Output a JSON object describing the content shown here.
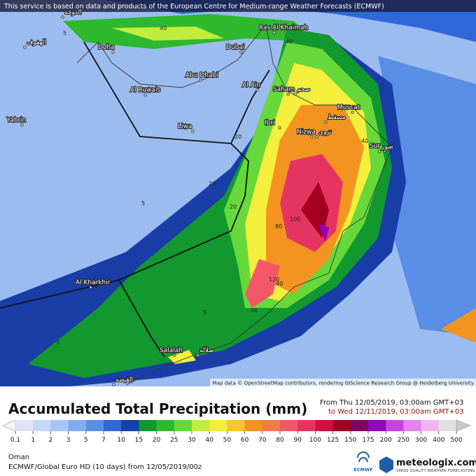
{
  "notice": "This service is based on data and products of the European Centre for Medium-range Weather Forecasts (ECMWF)",
  "map": {
    "places": [
      "Ras Al Khaimah",
      "Doha",
      "Dubai",
      "Abu Dhabi",
      "Al Ruwais",
      "Al Ain",
      "Saham",
      "Muscat",
      "Ibri",
      "Nizwa",
      "Sur",
      "Liwa",
      "Yabrin",
      "Al Kharkhir",
      "Salalah",
      "الهفوف",
      "صحم",
      "نزوى",
      "صور",
      "صلالة",
      "الغيضة",
      "الدوحة",
      "مسقط"
    ],
    "contours": [
      "5",
      "40",
      "40",
      "20",
      "20",
      "40",
      "5",
      "80",
      "100",
      "120",
      "40",
      "20",
      "5",
      "5",
      "20"
    ],
    "attribution": "Map data © OpenStreetMap contributors, rendering GIScience Research Group @ Heidelberg University"
  },
  "title": "Accumulated Total Precipitation (mm)",
  "from": "From Thu 12/05/2019, 03:00am GMT+03",
  "to": "to Wed 12/11/2019, 03:00am GMT+03",
  "legend": {
    "ticks": [
      "0.1",
      "1",
      "2",
      "3",
      "5",
      "7",
      "10",
      "15",
      "20",
      "25",
      "30",
      "40",
      "50",
      "60",
      "70",
      "80",
      "90",
      "100",
      "125",
      "150",
      "175",
      "200",
      "250",
      "300",
      "400",
      "500"
    ],
    "colors": [
      "#e2e2f6",
      "#c6d8f8",
      "#a6c6f6",
      "#82acf0",
      "#5a8ee6",
      "#3068d8",
      "#1a3ea8",
      "#12982e",
      "#2eb82e",
      "#66d83a",
      "#c2ec3c",
      "#f4ee3c",
      "#f6c62a",
      "#f49420",
      "#f47a4a",
      "#f45868",
      "#e63462",
      "#d01040",
      "#a2001e",
      "#80005e",
      "#9200c0",
      "#c444e0",
      "#e284f2",
      "#f2b4f2",
      "#e0e0e0"
    ]
  },
  "footer": {
    "region": "Oman",
    "model": "ECMWF/Global Euro HD (10 days) from 12/05/2019/00z",
    "ecmwf": "ECMWF",
    "brand": "meteologix.com",
    "tagline": "SWISS QUALITY WEATHER FORECASTING"
  }
}
